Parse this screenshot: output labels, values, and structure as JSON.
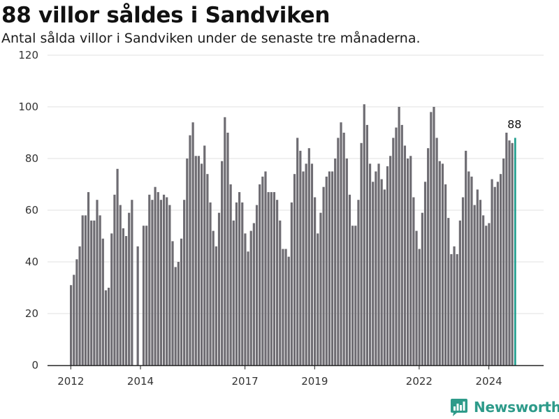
{
  "title": "88 villor såldes i Sandviken",
  "subtitle": "Antal sålda villor i Sandviken under de senaste tre månaderna.",
  "brand": {
    "name": "Newsworthy",
    "color": "#2e9b8a",
    "icon": "bar-chart-logo-icon"
  },
  "colors": {
    "bar": "#6e6c72",
    "highlight": "#1a9b8a",
    "grid": "#e0e0e0",
    "axis": "#222222"
  },
  "chart_data": {
    "type": "bar",
    "ylim": [
      0,
      120
    ],
    "yticks": [
      "0",
      "20",
      "40",
      "60",
      "80",
      "100",
      "120"
    ],
    "xticks": [
      "2012",
      "2014",
      "2017",
      "2019",
      "2022",
      "2024"
    ],
    "grid": true,
    "highlight_label": "88",
    "series": [
      {
        "values": [
          31,
          35,
          41,
          46,
          58,
          58,
          67,
          56,
          56,
          64,
          58,
          49,
          29,
          30,
          51,
          66,
          76,
          62,
          53,
          50,
          59,
          64,
          null,
          46,
          null,
          54,
          54,
          66,
          64,
          69,
          67,
          64,
          66,
          65,
          62,
          48,
          38,
          40,
          49,
          64,
          80,
          89,
          94,
          81,
          81,
          78,
          85,
          74,
          63,
          52,
          46,
          59,
          79,
          96,
          90,
          70,
          56,
          63,
          67,
          63,
          51,
          44,
          52,
          55,
          62,
          70,
          73,
          75,
          67,
          67,
          67,
          64,
          56,
          45,
          45,
          42,
          63,
          74,
          88,
          83,
          75,
          78,
          84,
          78,
          65,
          51,
          59,
          69,
          73,
          75,
          75,
          80,
          88,
          94,
          90,
          80,
          66,
          54,
          54,
          64,
          86,
          101,
          93,
          78,
          71,
          75,
          78,
          72,
          68,
          77,
          81,
          88,
          92,
          100,
          93,
          85,
          80,
          81,
          65,
          52,
          45,
          59,
          71,
          84,
          98,
          100,
          88,
          79,
          78,
          70,
          57,
          43,
          46,
          43,
          56,
          65,
          83,
          75,
          73,
          62,
          68,
          64,
          58,
          54,
          55,
          72,
          69,
          71,
          74,
          80,
          90,
          87,
          86,
          88
        ]
      }
    ]
  }
}
